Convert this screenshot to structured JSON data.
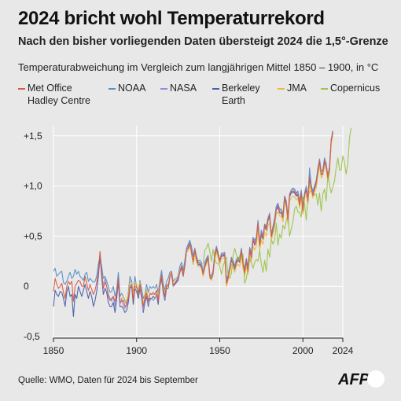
{
  "title": "2024 bricht wohl Temperaturrekord",
  "subtitle": "Nach den bisher vorliegenden Daten übersteigt 2024 die 1,5°-Grenze",
  "unit_line": "Temperaturabweichung im Vergleich zum langjährigen Mittel 1850 – 1900, in °C",
  "source": "Quelle: WMO, Daten für 2024 bis September",
  "logo_text": "AFP",
  "colors": {
    "background": "#e8e8e8",
    "grid": "#ffffff",
    "axis": "#222222"
  },
  "chart_data": {
    "type": "line",
    "xlim": [
      1850,
      2024
    ],
    "ylim": [
      -0.5,
      1.6
    ],
    "xticks": [
      1850,
      1900,
      1950,
      2000,
      2024
    ],
    "xtick_labels": [
      "1850",
      "1900",
      "1950",
      "2000",
      "2024"
    ],
    "yticks": [
      -0.5,
      0,
      0.5,
      1.0,
      1.5
    ],
    "ytick_labels": [
      "-0,5",
      "0",
      "+0,5",
      "+1,0",
      "+1,5"
    ],
    "grid": true,
    "legend_position": "top",
    "series": [
      {
        "name": "Met Office\nHadley Centre",
        "color": "#d75a4a",
        "start": 1850,
        "values": [
          -0.05,
          0.08,
          0.02,
          -0.02,
          0.0,
          0.03,
          -0.06,
          -0.12,
          0.0,
          0.05,
          0.02,
          0.05,
          -0.15,
          0.0,
          0.03,
          0.06,
          0.05,
          0.0,
          0.0,
          0.1,
          0.03,
          -0.04,
          0.02,
          -0.03,
          -0.08,
          -0.04,
          0.04,
          0.15,
          0.35,
          0.15,
          -0.02,
          0.04,
          0.0,
          -0.1,
          -0.14,
          -0.12,
          -0.1,
          -0.15,
          -0.08,
          0.08,
          -0.16,
          -0.15,
          -0.14,
          -0.2,
          -0.18,
          -0.12,
          0.0,
          0.02,
          -0.14,
          0.0,
          -0.01,
          -0.08,
          0.02,
          -0.08,
          -0.2,
          -0.12,
          -0.07,
          -0.15,
          -0.07,
          -0.08,
          -0.06,
          -0.08,
          -0.04,
          -0.15,
          0.02,
          0.11,
          -0.03,
          -0.1,
          0.01,
          0.0,
          0.1,
          0.14,
          0.01,
          0.03,
          0.06,
          0.08,
          0.14,
          0.2,
          0.11,
          0.22,
          0.36,
          0.38,
          0.43,
          0.35,
          0.25,
          0.37,
          0.27,
          0.23,
          0.23,
          0.2,
          0.12,
          0.2,
          0.25,
          0.29,
          0.1,
          0.08,
          0.13,
          0.3,
          0.38,
          0.32,
          0.25,
          0.31,
          0.31,
          0.32,
          0.03,
          0.08,
          0.18,
          0.27,
          0.23,
          0.18,
          0.24,
          0.27,
          0.25,
          0.36,
          0.22,
          0.14,
          0.26,
          0.15,
          0.37,
          0.29,
          0.47,
          0.42,
          0.46,
          0.63,
          0.41,
          0.52,
          0.48,
          0.61,
          0.57,
          0.66,
          0.71,
          0.5,
          0.57,
          0.64,
          0.77,
          0.8,
          0.74,
          0.74,
          0.69,
          0.89,
          0.82,
          0.66,
          0.9,
          0.94,
          0.95,
          0.94,
          0.91,
          0.92,
          0.81,
          0.93,
          0.75,
          0.92,
          0.97,
          0.85,
          1.09,
          0.99,
          0.91,
          0.98,
          1.03,
          1.15,
          1.25,
          1.12,
          1.13,
          1.25,
          1.2,
          1.08,
          1.17,
          1.45,
          1.54
        ]
      },
      {
        "name": "NOAA",
        "color": "#5b8fc7",
        "start": 1850,
        "values": [
          0.15,
          0.18,
          0.1,
          0.12,
          0.14,
          0.15,
          0.04,
          0.02,
          0.05,
          0.1,
          0.14,
          0.08,
          0.1,
          0.17,
          0.12,
          0.15,
          0.1,
          0.08,
          0.06,
          0.12,
          0.14,
          0.05,
          0.08,
          0.06,
          0.04,
          0.05,
          0.1,
          0.22,
          0.3,
          0.2,
          0.08,
          0.1,
          0.05,
          0.0,
          -0.06,
          -0.05,
          0.0,
          -0.1,
          -0.04,
          0.14,
          -0.1,
          -0.07,
          -0.1,
          -0.14,
          -0.18,
          -0.06,
          0.1,
          0.05,
          -0.08,
          0.1,
          0.0,
          -0.05,
          0.06,
          -0.02,
          -0.12,
          -0.08,
          0.02,
          -0.06,
          0.0,
          -0.02,
          0.0,
          -0.02,
          0.02,
          -0.06,
          0.06,
          0.16,
          0.03,
          -0.04,
          0.05,
          0.08,
          0.14,
          0.15,
          0.05,
          0.07,
          0.08,
          0.1,
          0.2,
          0.24,
          0.16,
          0.26,
          0.38,
          0.42,
          0.46,
          0.4,
          0.3,
          0.38,
          0.3,
          0.25,
          0.26,
          0.24,
          0.14,
          0.24,
          0.28,
          0.31,
          0.12,
          0.1,
          0.16,
          0.33,
          0.4,
          0.34,
          0.26,
          0.33,
          0.33,
          0.34,
          0.07,
          0.12,
          0.2,
          0.29,
          0.26,
          0.2,
          0.27,
          0.29,
          0.28,
          0.38,
          0.24,
          0.18,
          0.28,
          0.19,
          0.39,
          0.33,
          0.49,
          0.46,
          0.49,
          0.66,
          0.44,
          0.56,
          0.5,
          0.62,
          0.6,
          0.68,
          0.73,
          0.52,
          0.6,
          0.68,
          0.8,
          0.83,
          0.77,
          0.77,
          0.72,
          0.9,
          0.85,
          0.7,
          0.92,
          0.96,
          0.98,
          0.97,
          0.93,
          0.95,
          0.84,
          0.96,
          0.8,
          0.93,
          1.0,
          0.87,
          1.18,
          1.01,
          0.95,
          1.0,
          1.06,
          1.18,
          1.27,
          1.15,
          1.16,
          1.28,
          1.22,
          1.1,
          1.2,
          1.46,
          1.55
        ]
      },
      {
        "name": "NASA",
        "color": "#8a8fd6",
        "start": 1880,
        "values": [
          0.02,
          0.08,
          0.0,
          -0.08,
          -0.12,
          -0.15,
          -0.1,
          -0.2,
          -0.04,
          0.1,
          -0.18,
          -0.12,
          -0.2,
          -0.22,
          -0.18,
          -0.1,
          0.04,
          0.06,
          -0.12,
          0.02,
          0.02,
          -0.06,
          0.0,
          -0.1,
          -0.24,
          -0.1,
          -0.05,
          -0.18,
          -0.14,
          -0.12,
          -0.14,
          -0.12,
          -0.08,
          -0.14,
          0.04,
          0.12,
          0.0,
          -0.12,
          0.0,
          0.02,
          0.08,
          0.12,
          0.0,
          0.04,
          0.05,
          0.08,
          0.16,
          0.21,
          0.12,
          0.24,
          0.37,
          0.4,
          0.44,
          0.36,
          0.24,
          0.36,
          0.28,
          0.24,
          0.24,
          0.21,
          0.14,
          0.22,
          0.26,
          0.3,
          0.1,
          0.08,
          0.14,
          0.31,
          0.38,
          0.32,
          0.24,
          0.32,
          0.32,
          0.33,
          0.04,
          0.1,
          0.19,
          0.28,
          0.24,
          0.18,
          0.25,
          0.28,
          0.26,
          0.37,
          0.22,
          0.16,
          0.27,
          0.17,
          0.38,
          0.3,
          0.48,
          0.44,
          0.47,
          0.64,
          0.42,
          0.54,
          0.5,
          0.62,
          0.58,
          0.67,
          0.72,
          0.51,
          0.58,
          0.66,
          0.78,
          0.82,
          0.76,
          0.76,
          0.71,
          0.9,
          0.84,
          0.68,
          0.92,
          0.95,
          0.97,
          0.95,
          0.92,
          0.94,
          0.83,
          0.95,
          0.78,
          0.93,
          0.99,
          0.86,
          1.12,
          1.0,
          0.93,
          0.99,
          1.05,
          1.17,
          1.26,
          1.14,
          1.15,
          1.27,
          1.21,
          1.09,
          1.19,
          1.46,
          1.55
        ]
      },
      {
        "name": "Berkeley\nEarth",
        "color": "#4a5fa8",
        "start": 1850,
        "values": [
          -0.2,
          -0.04,
          -0.08,
          -0.1,
          -0.05,
          -0.06,
          -0.12,
          -0.2,
          -0.06,
          0.0,
          -0.1,
          -0.08,
          -0.3,
          -0.08,
          -0.12,
          0.0,
          -0.05,
          -0.1,
          -0.04,
          0.02,
          -0.05,
          -0.12,
          -0.05,
          -0.1,
          -0.2,
          -0.14,
          -0.05,
          0.1,
          0.3,
          0.1,
          -0.08,
          -0.02,
          -0.06,
          -0.16,
          -0.2,
          -0.2,
          -0.16,
          -0.26,
          -0.12,
          0.04,
          -0.2,
          -0.2,
          -0.22,
          -0.26,
          -0.24,
          -0.16,
          -0.02,
          0.0,
          -0.18,
          -0.02,
          -0.05,
          -0.12,
          -0.02,
          -0.12,
          -0.26,
          -0.16,
          -0.1,
          -0.2,
          -0.12,
          -0.12,
          -0.1,
          -0.12,
          -0.08,
          -0.18,
          0.0,
          0.08,
          -0.06,
          -0.14,
          -0.02,
          -0.02,
          0.08,
          0.12,
          0.0,
          0.02,
          0.04,
          0.06,
          0.14,
          0.18,
          0.1,
          0.2,
          0.34,
          0.36,
          0.41,
          0.33,
          0.22,
          0.35,
          0.26,
          0.21,
          0.22,
          0.19,
          0.11,
          0.19,
          0.24,
          0.28,
          0.09,
          0.07,
          0.12,
          0.29,
          0.37,
          0.31,
          0.24,
          0.3,
          0.3,
          0.31,
          0.02,
          0.07,
          0.17,
          0.26,
          0.22,
          0.17,
          0.23,
          0.26,
          0.24,
          0.35,
          0.21,
          0.13,
          0.25,
          0.14,
          0.36,
          0.28,
          0.46,
          0.41,
          0.45,
          0.62,
          0.4,
          0.51,
          0.47,
          0.6,
          0.56,
          0.65,
          0.7,
          0.49,
          0.56,
          0.63,
          0.76,
          0.79,
          0.73,
          0.73,
          0.68,
          0.88,
          0.81,
          0.65,
          0.89,
          0.93,
          0.94,
          0.93,
          0.9,
          0.91,
          0.8,
          0.92,
          0.74,
          0.91,
          0.96,
          0.84,
          1.08,
          0.98,
          0.9,
          0.97,
          1.02,
          1.14,
          1.24,
          1.11,
          1.12,
          1.24,
          1.19,
          1.07,
          1.16,
          1.44,
          1.53
        ]
      },
      {
        "name": "JMA",
        "color": "#e8b93b",
        "start": 1891,
        "values": [
          -0.12,
          -0.1,
          -0.16,
          -0.14,
          -0.08,
          0.04,
          0.04,
          -0.1,
          0.04,
          0.02,
          -0.04,
          0.04,
          -0.06,
          -0.18,
          -0.08,
          -0.03,
          -0.14,
          -0.08,
          -0.08,
          -0.08,
          -0.08,
          -0.04,
          -0.1,
          0.04,
          0.1,
          0.0,
          -0.08,
          0.02,
          0.02,
          0.08,
          0.12,
          0.02,
          0.04,
          0.06,
          0.08,
          0.15,
          0.2,
          0.12,
          0.22,
          0.34,
          0.36,
          0.4,
          0.34,
          0.22,
          0.32,
          0.24,
          0.2,
          0.2,
          0.18,
          0.1,
          0.18,
          0.22,
          0.26,
          0.08,
          0.06,
          0.11,
          0.27,
          0.34,
          0.28,
          0.22,
          0.28,
          0.28,
          0.29,
          0.0,
          0.06,
          0.14,
          0.22,
          0.18,
          0.14,
          0.2,
          0.22,
          0.2,
          0.3,
          0.18,
          0.1,
          0.2,
          0.12,
          0.3,
          0.24,
          0.4,
          0.36,
          0.4,
          0.56,
          0.36,
          0.46,
          0.42,
          0.54,
          0.5,
          0.6,
          0.64,
          0.46,
          0.52,
          0.6,
          0.72,
          0.74,
          0.7,
          0.7,
          0.64,
          0.84,
          0.78,
          0.62,
          0.85,
          0.88,
          0.9,
          0.89,
          0.86,
          0.88,
          0.78,
          0.88,
          0.72,
          0.88,
          0.92,
          0.82,
          1.02,
          0.95,
          0.88,
          0.94,
          0.98,
          1.1,
          1.2,
          1.08,
          1.1,
          1.2,
          1.16,
          1.05,
          1.13,
          1.42,
          1.5
        ]
      },
      {
        "name": "Copernicus",
        "color": "#9cc44a",
        "start": 1940,
        "values": [
          0.22,
          0.36,
          0.38,
          0.43,
          0.35,
          0.25,
          0.37,
          0.27,
          0.23,
          0.23,
          0.2,
          0.12,
          0.2,
          0.25,
          0.29,
          0.1,
          0.08,
          0.13,
          0.3,
          0.38,
          0.32,
          0.25,
          0.31,
          0.31,
          0.32,
          0.03,
          0.08,
          0.18,
          0.27,
          0.23,
          0.18,
          0.24,
          0.27,
          0.25,
          0.36,
          0.22,
          0.14,
          0.26,
          0.15,
          0.37,
          0.29,
          0.47,
          0.42,
          0.46,
          0.63,
          0.41,
          0.52,
          0.48,
          0.61,
          0.57,
          0.66,
          0.71,
          0.5,
          0.57,
          0.64,
          0.77,
          0.8,
          0.74,
          0.74,
          0.69,
          0.89,
          0.82,
          0.66,
          0.9,
          0.94,
          0.95,
          0.94,
          0.91,
          0.92,
          0.81,
          0.93,
          0.75,
          0.92,
          0.97,
          0.85,
          1.12,
          1.01,
          0.93,
          0.99,
          1.05,
          1.18,
          1.28,
          1.16,
          1.16,
          1.3,
          1.24,
          1.12,
          1.22,
          1.48,
          1.58
        ]
      }
    ]
  }
}
